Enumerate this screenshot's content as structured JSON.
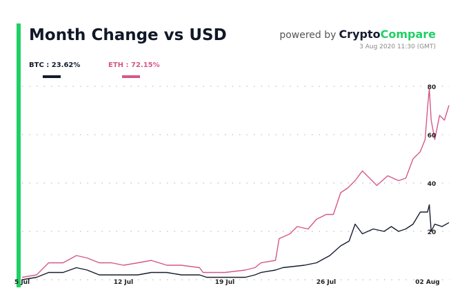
{
  "header": {
    "title": "Month Change vs USD",
    "powered_by": "powered by",
    "brand_part1": "Crypto",
    "brand_part2": "Compare",
    "timestamp": "3 Aug 2020 11:30 (GMT)"
  },
  "colors": {
    "accent": "#1fd064",
    "btc": "#141b2d",
    "eth": "#d4578a"
  },
  "chart_data": {
    "type": "line",
    "title": "Month Change vs USD",
    "ylim": [
      0,
      80
    ],
    "yticks": [
      20,
      40,
      60,
      80
    ],
    "xticks": [
      {
        "date": "2020-07-05",
        "label": "5 Jul"
      },
      {
        "date": "2020-07-12",
        "label": "12 Jul"
      },
      {
        "date": "2020-07-19",
        "label": "19 Jul"
      },
      {
        "date": "2020-07-26",
        "label": "26 Jul"
      },
      {
        "date": "2020-08-02",
        "label": "02 Aug"
      }
    ],
    "grid": true,
    "legend": "top-left",
    "series": [
      {
        "name": "BTC",
        "label": "BTC : 23.62%",
        "color": "#141b2d",
        "points": [
          [
            "2020-07-05 00:00",
            0
          ],
          [
            "2020-07-06 00:00",
            1
          ],
          [
            "2020-07-06 20:00",
            3
          ],
          [
            "2020-07-07 20:00",
            3
          ],
          [
            "2020-07-08 18:00",
            5
          ],
          [
            "2020-07-09 12:00",
            4
          ],
          [
            "2020-07-10 08:00",
            2
          ],
          [
            "2020-07-11 04:00",
            2
          ],
          [
            "2020-07-12 00:00",
            2
          ],
          [
            "2020-07-13 00:00",
            2
          ],
          [
            "2020-07-13 22:00",
            3
          ],
          [
            "2020-07-15 00:00",
            3
          ],
          [
            "2020-07-16 00:00",
            2
          ],
          [
            "2020-07-17 06:00",
            2
          ],
          [
            "2020-07-17 18:00",
            1
          ],
          [
            "2020-07-19 00:00",
            1
          ],
          [
            "2020-07-20 10:00",
            1
          ],
          [
            "2020-07-21 02:00",
            2
          ],
          [
            "2020-07-21 12:00",
            3
          ],
          [
            "2020-07-22 12:00",
            4
          ],
          [
            "2020-07-23 00:00",
            5
          ],
          [
            "2020-07-24 12:00",
            6
          ],
          [
            "2020-07-25 08:00",
            7
          ],
          [
            "2020-07-26 06:00",
            10
          ],
          [
            "2020-07-27 00:00",
            14
          ],
          [
            "2020-07-27 14:00",
            16
          ],
          [
            "2020-07-28 00:00",
            23
          ],
          [
            "2020-07-28 12:00",
            19
          ],
          [
            "2020-07-29 06:00",
            21
          ],
          [
            "2020-07-30 00:00",
            20
          ],
          [
            "2020-07-30 12:00",
            22
          ],
          [
            "2020-07-31 00:00",
            20
          ],
          [
            "2020-07-31 12:00",
            21
          ],
          [
            "2020-08-01 00:00",
            23
          ],
          [
            "2020-08-01 12:00",
            28
          ],
          [
            "2020-08-02 00:00",
            28
          ],
          [
            "2020-08-02 03:00",
            31
          ],
          [
            "2020-08-02 06:00",
            20
          ],
          [
            "2020-08-02 12:00",
            23
          ],
          [
            "2020-08-03 00:00",
            22
          ],
          [
            "2020-08-03 11:30",
            23.62
          ]
        ]
      },
      {
        "name": "ETH",
        "label": "ETH : 72.15%",
        "color": "#d4578a",
        "points": [
          [
            "2020-07-05 00:00",
            1
          ],
          [
            "2020-07-06 00:00",
            2
          ],
          [
            "2020-07-06 20:00",
            7
          ],
          [
            "2020-07-07 20:00",
            7
          ],
          [
            "2020-07-08 18:00",
            10
          ],
          [
            "2020-07-09 12:00",
            9
          ],
          [
            "2020-07-10 08:00",
            7
          ],
          [
            "2020-07-11 04:00",
            7
          ],
          [
            "2020-07-12 00:00",
            6
          ],
          [
            "2020-07-13 00:00",
            7
          ],
          [
            "2020-07-13 22:00",
            8
          ],
          [
            "2020-07-15 00:00",
            6
          ],
          [
            "2020-07-16 00:00",
            6
          ],
          [
            "2020-07-17 06:00",
            5
          ],
          [
            "2020-07-17 12:00",
            3
          ],
          [
            "2020-07-19 00:00",
            3
          ],
          [
            "2020-07-20 10:00",
            4
          ],
          [
            "2020-07-21 02:00",
            5
          ],
          [
            "2020-07-21 12:00",
            7
          ],
          [
            "2020-07-22 12:00",
            8
          ],
          [
            "2020-07-22 18:00",
            17
          ],
          [
            "2020-07-23 12:00",
            19
          ],
          [
            "2020-07-24 00:00",
            22
          ],
          [
            "2020-07-24 18:00",
            21
          ],
          [
            "2020-07-25 08:00",
            25
          ],
          [
            "2020-07-26 00:00",
            27
          ],
          [
            "2020-07-26 12:00",
            27
          ],
          [
            "2020-07-27 00:00",
            36
          ],
          [
            "2020-07-27 12:00",
            38
          ],
          [
            "2020-07-28 00:00",
            41
          ],
          [
            "2020-07-28 12:00",
            45
          ],
          [
            "2020-07-29 00:00",
            42
          ],
          [
            "2020-07-29 12:00",
            39
          ],
          [
            "2020-07-30 06:00",
            43
          ],
          [
            "2020-07-31 00:00",
            41
          ],
          [
            "2020-07-31 12:00",
            42
          ],
          [
            "2020-08-01 00:00",
            50
          ],
          [
            "2020-08-01 12:00",
            53
          ],
          [
            "2020-08-01 20:00",
            58
          ],
          [
            "2020-08-02 00:00",
            71
          ],
          [
            "2020-08-02 03:00",
            79
          ],
          [
            "2020-08-02 06:00",
            66
          ],
          [
            "2020-08-02 12:00",
            58
          ],
          [
            "2020-08-02 20:00",
            68
          ],
          [
            "2020-08-03 04:00",
            66
          ],
          [
            "2020-08-03 11:30",
            72.15
          ]
        ]
      }
    ]
  }
}
